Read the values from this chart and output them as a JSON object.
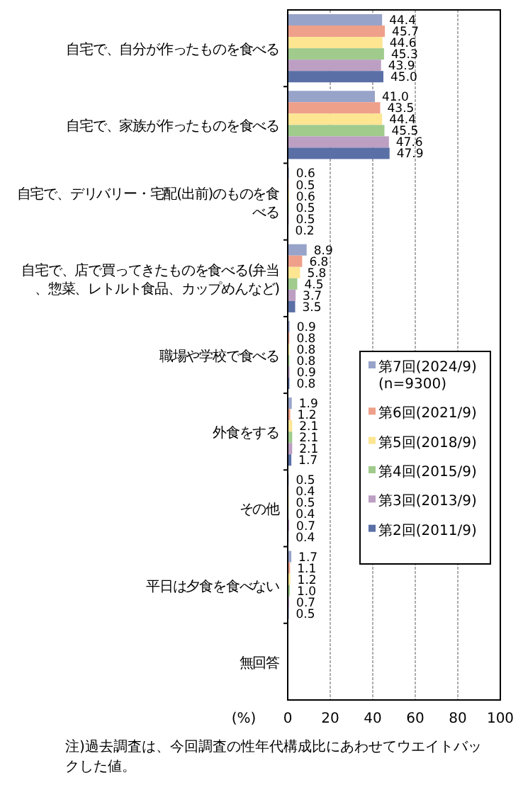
{
  "chart_data": {
    "type": "bar",
    "orientation": "horizontal",
    "xlabel": "(%)",
    "categories": [
      "自宅で、自分が作ったものを食べる",
      "自宅で、家族が作ったものを食べる",
      "自宅で、デリバリー・宅配(出前)のものを食べる",
      "自宅で、店で買ってきたものを食べる(弁当、惣菜、レトルト食品、カップめんなど)",
      "職場や学校で食べる",
      "外食をする",
      "その他",
      "平日は夕食を食べない",
      "無回答"
    ],
    "series": [
      {
        "name": "第7回(2024/9)\n(n=9300)",
        "color": "#98a3c9",
        "values": [
          44.4,
          41.0,
          0.6,
          8.9,
          0.9,
          1.9,
          0.5,
          1.7,
          null
        ],
        "value_labels": [
          "44.4",
          "41.0",
          "0.6",
          "8.9",
          "0.9",
          "1.9",
          "0.5",
          "1.7",
          null
        ]
      },
      {
        "name": "第6回(2021/9)",
        "color": "#eea08a",
        "values": [
          45.7,
          43.5,
          0.5,
          6.8,
          0.8,
          1.2,
          0.4,
          1.1,
          null
        ],
        "value_labels": [
          "45.7",
          "43.5",
          "0.5",
          "6.8",
          "0.8",
          "1.2",
          "0.4",
          "1.1",
          null
        ]
      },
      {
        "name": "第5回(2018/9)",
        "color": "#fde592",
        "values": [
          44.6,
          44.4,
          0.6,
          5.8,
          0.8,
          2.1,
          0.5,
          1.2,
          null
        ],
        "value_labels": [
          "44.6",
          "44.4",
          "0.6",
          "5.8",
          "0.8",
          "2.1",
          "0.5",
          "1.2",
          null
        ]
      },
      {
        "name": "第4回(2015/9)",
        "color": "#a0cb8d",
        "values": [
          45.3,
          45.5,
          0.5,
          4.5,
          0.8,
          2.1,
          0.4,
          1.0,
          null
        ],
        "value_labels": [
          "45.3",
          "45.5",
          "0.5",
          "4.5",
          "0.8",
          "2.1",
          "0.4",
          "1.0",
          null
        ]
      },
      {
        "name": "第3回(2013/9)",
        "color": "#bc9fc2",
        "values": [
          43.9,
          47.6,
          0.5,
          3.7,
          0.9,
          2.1,
          0.7,
          0.7,
          null
        ],
        "value_labels": [
          "43.9",
          "47.6",
          "0.5",
          "3.7",
          "0.9",
          "2.1",
          "0.7",
          "0.7",
          null
        ]
      },
      {
        "name": "第2回(2011/9)",
        "color": "#5a6fa5",
        "values": [
          45.0,
          47.9,
          0.2,
          3.5,
          0.8,
          1.7,
          0.4,
          0.5,
          null
        ],
        "value_labels": [
          "45.0",
          "47.9",
          "0.2",
          "3.5",
          "0.8",
          "1.7",
          "0.4",
          "0.5",
          null
        ]
      }
    ],
    "xlim": [
      0,
      100
    ],
    "xticks": [
      0,
      20,
      40,
      60,
      80,
      100
    ],
    "grid": "x",
    "legend": "right",
    "annotations": [
      "注)過去調査は、今回調査の性年代構成比にあわせてウエイトバックした値。"
    ]
  }
}
